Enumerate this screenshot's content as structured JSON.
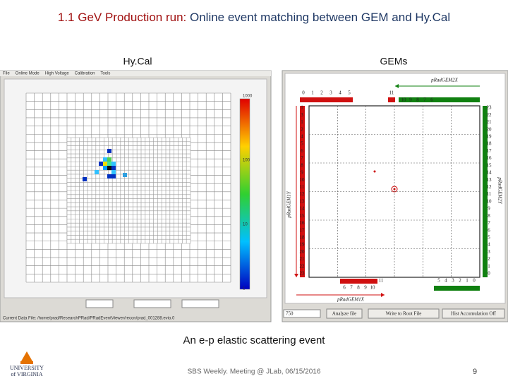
{
  "title": {
    "lead": "1.1 GeV Production run:",
    "rest": "Online event matching between GEM and Hy.Cal"
  },
  "hycal": {
    "label": "Hy.Cal",
    "menu": [
      "File",
      "Online Mode",
      "High Voltage",
      "Calibration",
      "Tools"
    ],
    "colorbar": [
      "1000",
      "100",
      "10",
      "1"
    ],
    "status": "Current Data File: /home/prad/ResearchPRad/PRadEventViewer/recon/prad_001288.evio.0"
  },
  "gems": {
    "label": "GEMs",
    "axis_top": "pRadGEM2X",
    "axis_left": "pRadGEM1Y",
    "axis_right": "pRadGEM2Y",
    "axis_bottom": "pRadGEM1X",
    "top_left": [
      "0",
      "1",
      "2",
      "3",
      "4",
      "5"
    ],
    "top_right_first": "11",
    "top_right": [
      "10",
      "9",
      "8",
      "7",
      "6"
    ],
    "left": [
      "1",
      "3",
      "1",
      "2",
      "4",
      "5",
      "6",
      "7",
      "8",
      "9",
      "10",
      "11",
      "12",
      "13",
      "14",
      "15",
      "16",
      "17",
      "18",
      "19",
      "20",
      "21",
      "22",
      "23"
    ],
    "right": [
      "23",
      "22",
      "21",
      "20",
      "19",
      "18",
      "17",
      "16",
      "15",
      "14",
      "13",
      "12",
      "11",
      "10",
      "9",
      "8",
      "7",
      "6",
      "5",
      "4",
      "3",
      "2",
      "1",
      "0"
    ],
    "bottom_left_last": "11",
    "bottom_left": [
      "6",
      "7",
      "8",
      "9",
      "10"
    ],
    "bottom_right": [
      "5",
      "4",
      "3",
      "2",
      "1",
      "0"
    ],
    "input": "750",
    "buttons": [
      "Analyze file",
      "Write to Root File",
      "Hist Accumulation Off"
    ]
  },
  "caption": "An e-p elastic scattering event",
  "footer": {
    "meeting": "SBS Weekly. Meeting @ JLab, 06/15/2016",
    "page": "9"
  },
  "logo": {
    "line1": "UNIVERSITY",
    "line2": "of VIRGINIA"
  }
}
